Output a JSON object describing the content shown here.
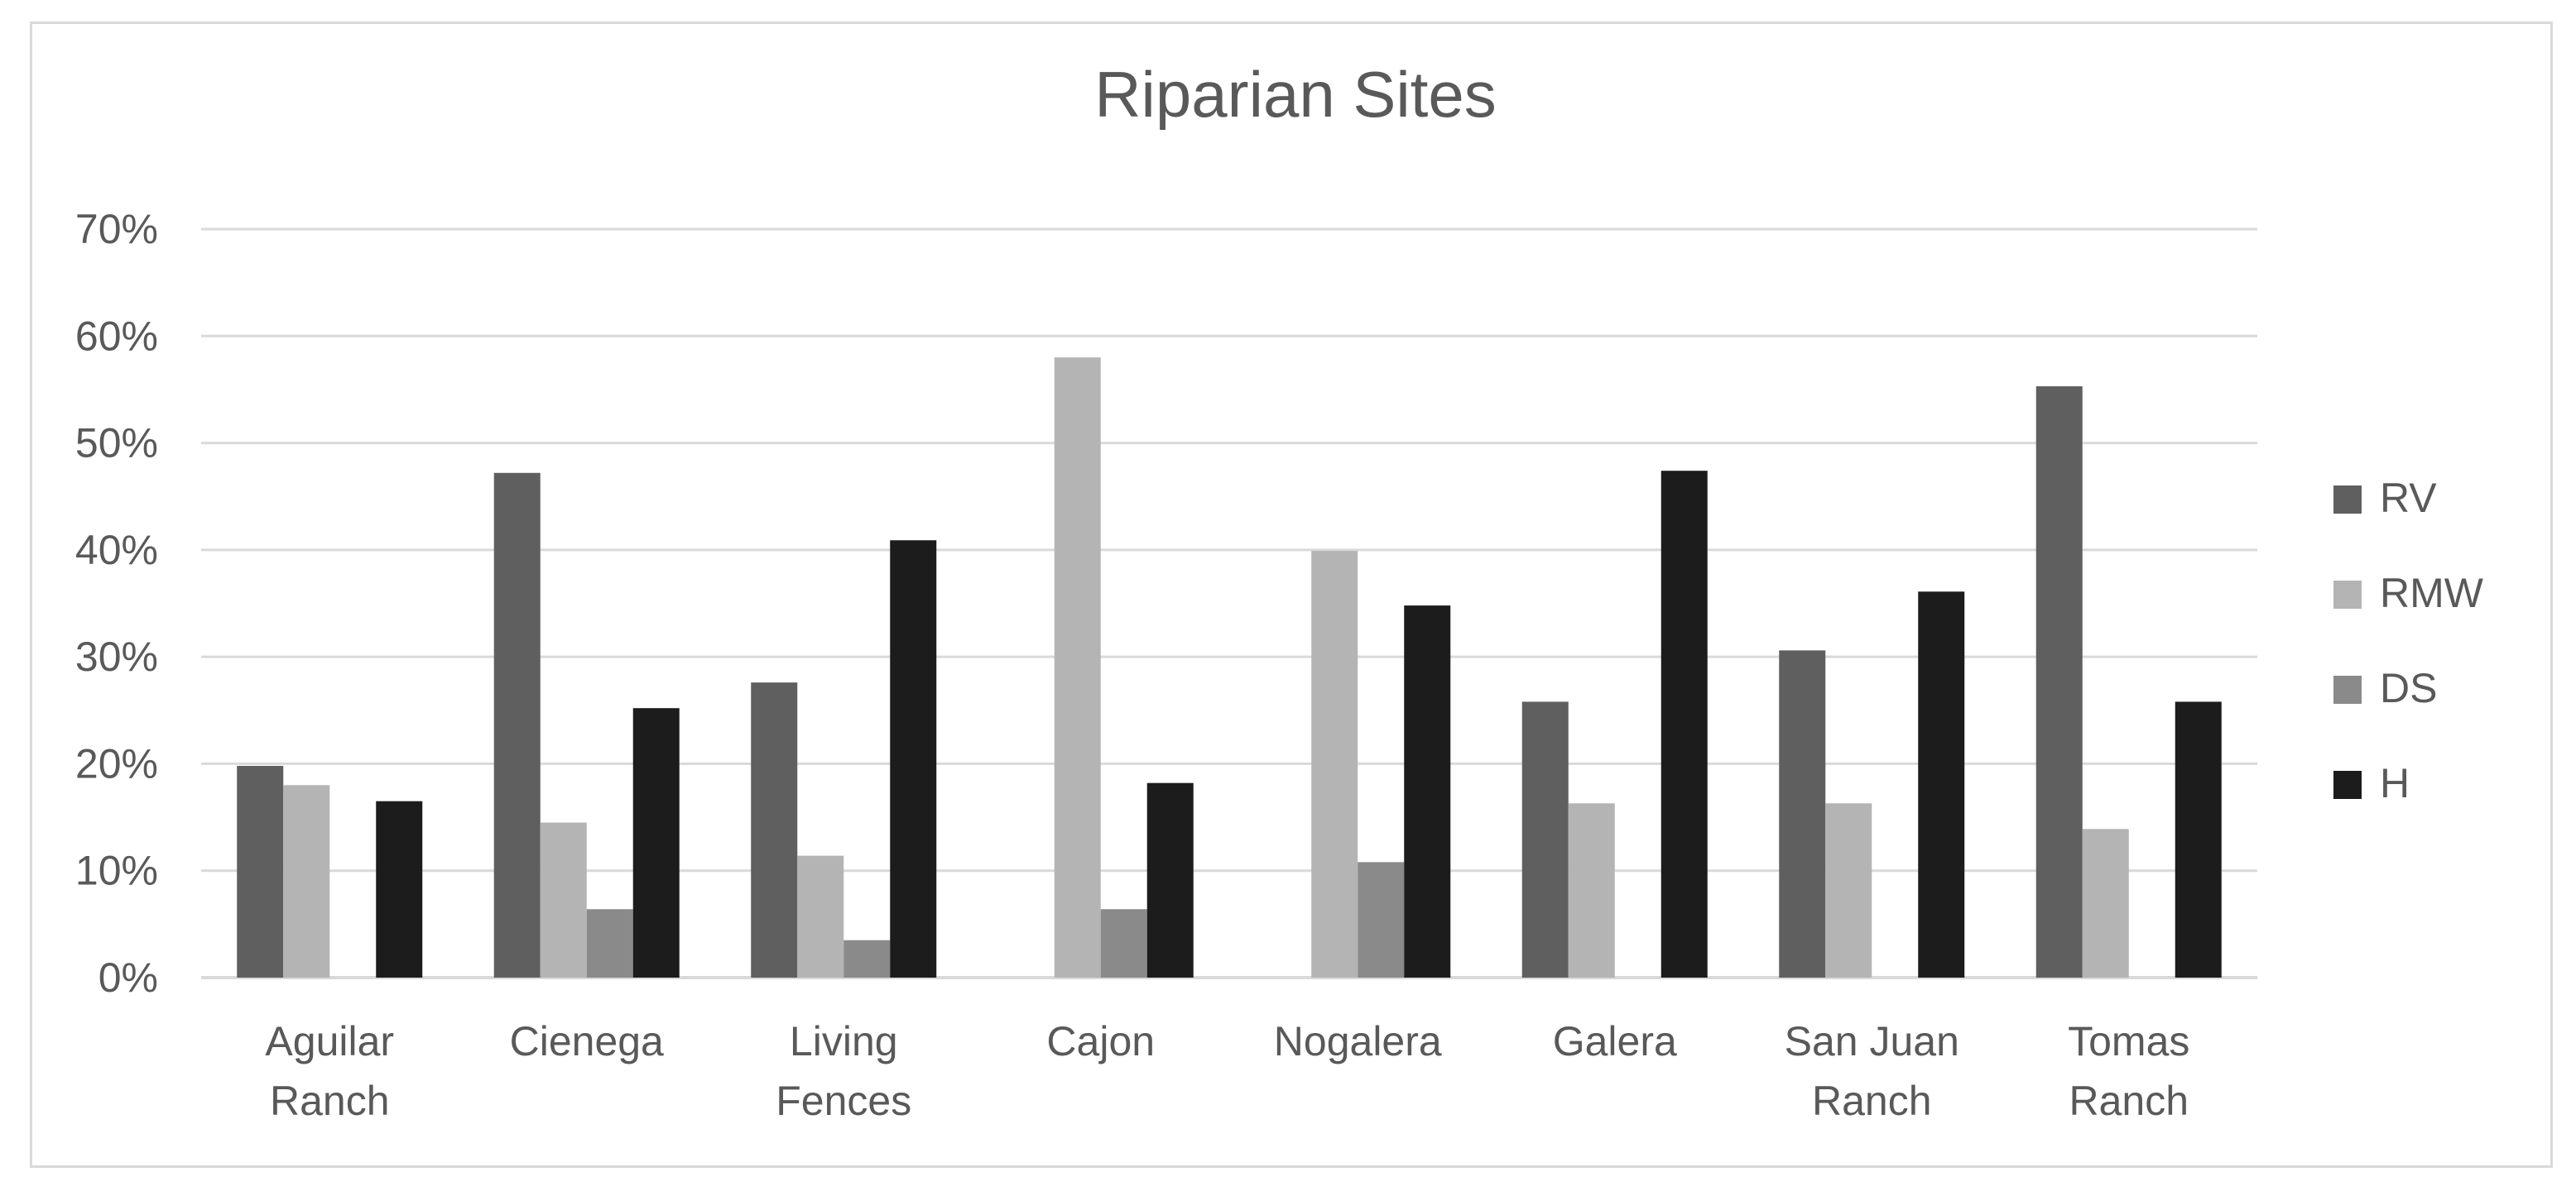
{
  "chart_data": {
    "type": "bar",
    "title": "Riparian Sites",
    "categories": [
      [
        "Aguilar",
        "Ranch"
      ],
      [
        "Cienega"
      ],
      [
        "Living",
        "Fences"
      ],
      [
        "Cajon"
      ],
      [
        "Nogalera"
      ],
      [
        "Galera"
      ],
      [
        "San Juan",
        "Ranch"
      ],
      [
        "Tomas",
        "Ranch"
      ]
    ],
    "series": [
      {
        "name": "RV",
        "color": "#5f5f5f",
        "values": [
          19.8,
          47.2,
          27.6,
          0,
          0,
          25.8,
          30.6,
          55.3
        ]
      },
      {
        "name": "RMW",
        "color": "#b4b4b4",
        "values": [
          18.0,
          14.5,
          11.4,
          58.0,
          39.9,
          16.3,
          16.3,
          13.9
        ]
      },
      {
        "name": "DS",
        "color": "#8a8a8a",
        "values": [
          0,
          6.4,
          3.5,
          6.4,
          10.8,
          0,
          0,
          0
        ]
      },
      {
        "name": "H",
        "color": "#1c1c1c",
        "values": [
          16.5,
          25.2,
          40.9,
          18.2,
          34.8,
          47.4,
          36.1,
          25.8
        ]
      }
    ],
    "ylim": [
      0,
      70
    ],
    "yticks": [
      0,
      10,
      20,
      30,
      40,
      50,
      60,
      70
    ],
    "ytick_labels": [
      "0%",
      "10%",
      "20%",
      "30%",
      "40%",
      "50%",
      "60%",
      "70%"
    ],
    "grid": true,
    "legend_position": "right"
  }
}
